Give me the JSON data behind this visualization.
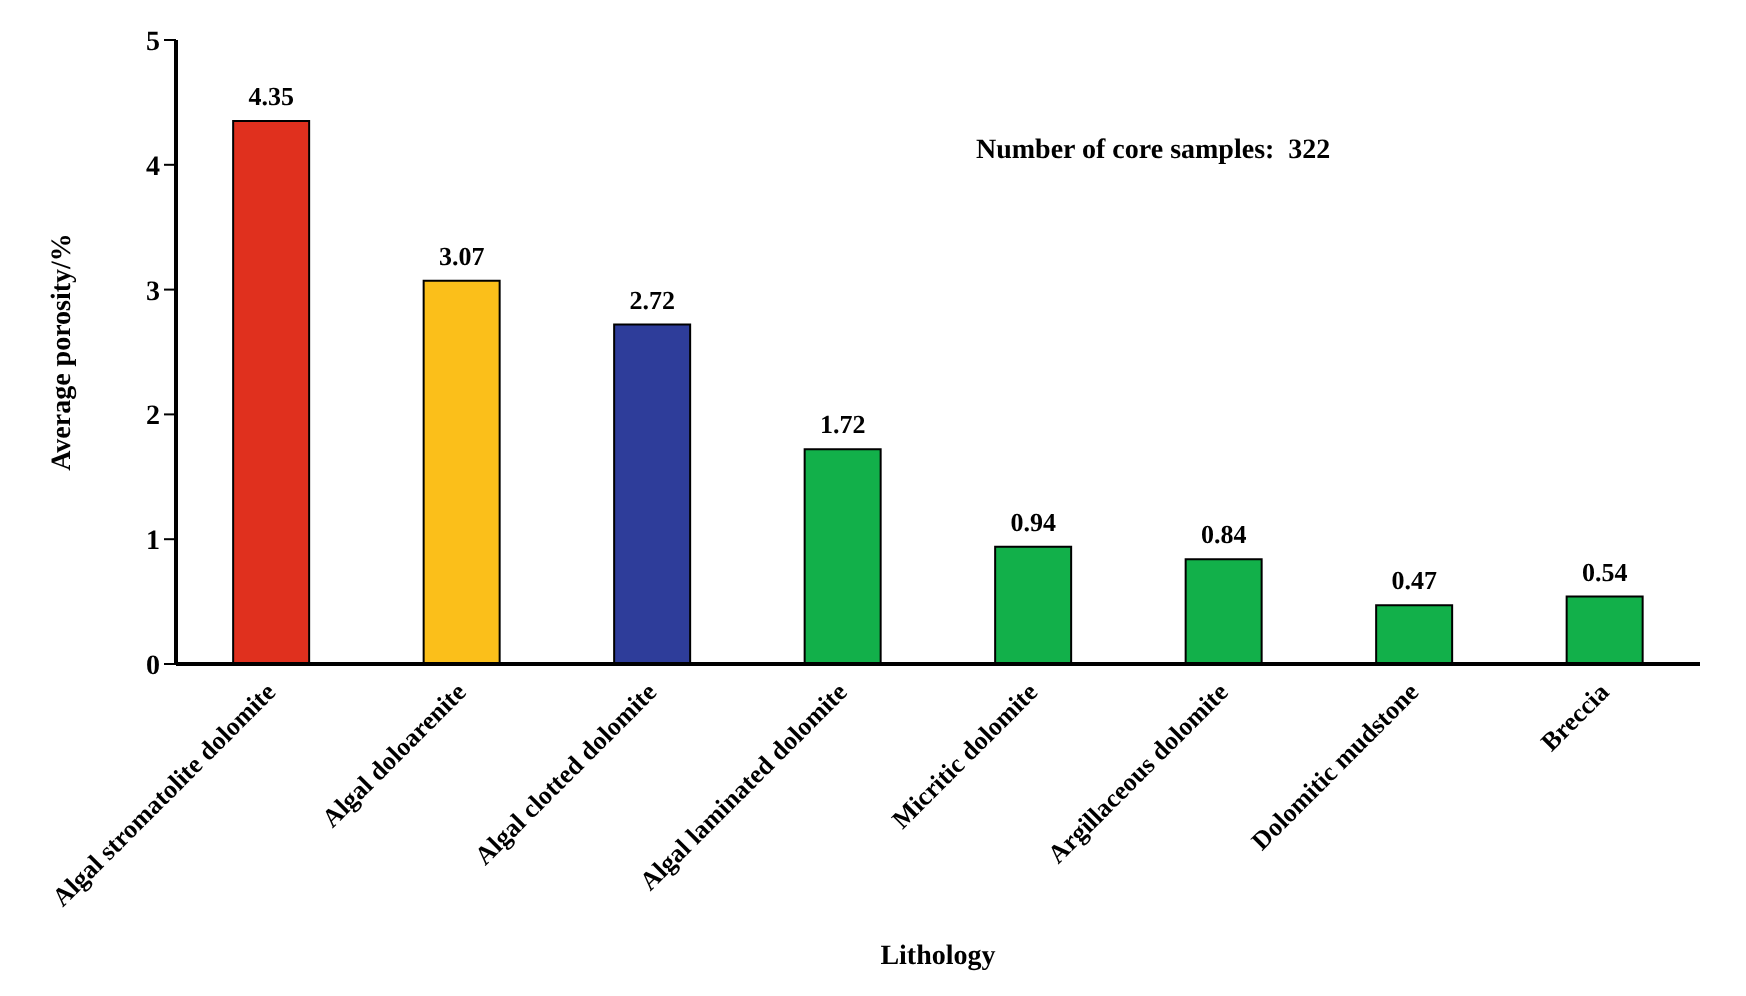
{
  "chart_data": {
    "type": "bar",
    "xlabel": "Lithology",
    "ylabel": "Average porosity/%",
    "categories": [
      "Algal stromatolite dolomite",
      "Algal doloarenite",
      "Algal clotted dolomite",
      "Algal laminated dolomite",
      "Micritic dolomite",
      "Argillaceous dolomite",
      "Dolomitic mudstone",
      "Breccia"
    ],
    "values": [
      4.35,
      3.07,
      2.72,
      1.72,
      0.94,
      0.84,
      0.47,
      0.54
    ],
    "colors": [
      "#e0301e",
      "#fbbf1a",
      "#2e3d9a",
      "#12b04a",
      "#12b04a",
      "#12b04a",
      "#12b04a",
      "#12b04a"
    ],
    "ylim": [
      0,
      5
    ],
    "yticks": [
      0,
      1,
      2,
      3,
      4,
      5
    ],
    "grid": false,
    "legend": false,
    "data_labels": true,
    "annotations": [
      "Number of core samples:  322"
    ]
  }
}
